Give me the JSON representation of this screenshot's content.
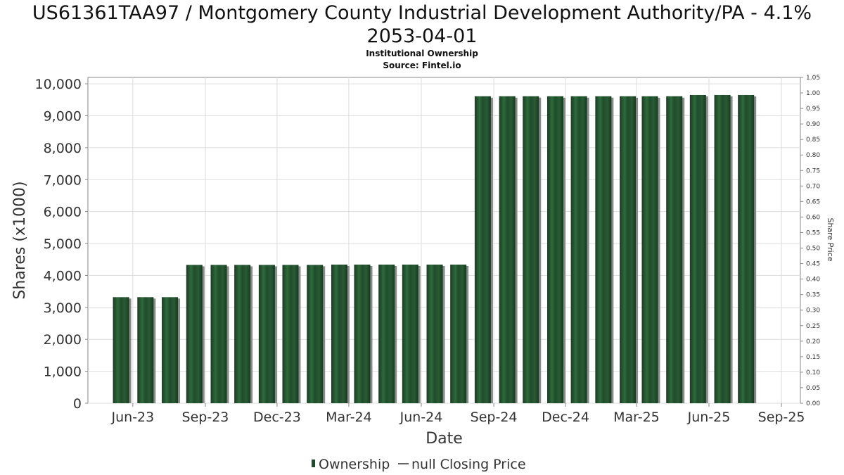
{
  "title_lines": [
    "US61361TAA97 / Montgomery County Industrial Development Authority/PA - 4.1%",
    "2053-04-01"
  ],
  "subtitle": "Institutional Ownership",
  "source": "Source: Fintel.io",
  "colors": {
    "bar": "#1f4d2b",
    "bar_highlight": "#2f6a3c",
    "bar_shadow": "#8a8a8a",
    "grid": "#dddddd",
    "axis": "#888888"
  },
  "chart_data": {
    "type": "bar",
    "xlabel": "Date",
    "ylabel": "Shares (x1000)",
    "y2label": "Share Price",
    "ylim": [
      0,
      10200
    ],
    "y2lim": [
      0,
      1.05
    ],
    "grid": true,
    "legend_position": "bottom",
    "yticks": [
      {
        "value": 0,
        "label": "0"
      },
      {
        "value": 1000,
        "label": "1,000"
      },
      {
        "value": 2000,
        "label": "2,000"
      },
      {
        "value": 3000,
        "label": "3,000"
      },
      {
        "value": 4000,
        "label": "4,000"
      },
      {
        "value": 5000,
        "label": "5,000"
      },
      {
        "value": 6000,
        "label": "6,000"
      },
      {
        "value": 7000,
        "label": "7,000"
      },
      {
        "value": 8000,
        "label": "8,000"
      },
      {
        "value": 9000,
        "label": "9,000"
      },
      {
        "value": 10000,
        "label": "10,000"
      }
    ],
    "y2ticks": [
      {
        "value": 0.0,
        "label": "0.00"
      },
      {
        "value": 0.05,
        "label": "0.05"
      },
      {
        "value": 0.1,
        "label": "0.10"
      },
      {
        "value": 0.15,
        "label": "0.15"
      },
      {
        "value": 0.2,
        "label": "0.20"
      },
      {
        "value": 0.25,
        "label": "0.25"
      },
      {
        "value": 0.3,
        "label": "0.30"
      },
      {
        "value": 0.35,
        "label": "0.35"
      },
      {
        "value": 0.4,
        "label": "0.40"
      },
      {
        "value": 0.45,
        "label": "0.45"
      },
      {
        "value": 0.5,
        "label": "0.50"
      },
      {
        "value": 0.55,
        "label": "0.55"
      },
      {
        "value": 0.6,
        "label": "0.60"
      },
      {
        "value": 0.65,
        "label": "0.65"
      },
      {
        "value": 0.7,
        "label": "0.70"
      },
      {
        "value": 0.75,
        "label": "0.75"
      },
      {
        "value": 0.8,
        "label": "0.80"
      },
      {
        "value": 0.85,
        "label": "0.85"
      },
      {
        "value": 0.9,
        "label": "0.90"
      },
      {
        "value": 0.95,
        "label": "0.95"
      },
      {
        "value": 1.0,
        "label": "1.00"
      },
      {
        "value": 1.05,
        "label": "1.05"
      }
    ],
    "xticks": [
      {
        "date": "2023-06-01",
        "label": "Jun-23"
      },
      {
        "date": "2023-09-01",
        "label": "Sep-23"
      },
      {
        "date": "2023-12-01",
        "label": "Dec-23"
      },
      {
        "date": "2024-03-01",
        "label": "Mar-24"
      },
      {
        "date": "2024-06-01",
        "label": "Jun-24"
      },
      {
        "date": "2024-09-01",
        "label": "Sep-24"
      },
      {
        "date": "2024-12-01",
        "label": "Dec-24"
      },
      {
        "date": "2025-03-01",
        "label": "Mar-25"
      },
      {
        "date": "2025-06-01",
        "label": "Jun-25"
      },
      {
        "date": "2025-09-01",
        "label": "Sep-25"
      }
    ],
    "x_range": [
      "2023-04-05",
      "2025-09-25"
    ],
    "series": [
      {
        "name": "Ownership",
        "points": [
          {
            "date": "2023-05-17",
            "value": 3320
          },
          {
            "date": "2023-06-17",
            "value": 3320
          },
          {
            "date": "2023-07-18",
            "value": 3320
          },
          {
            "date": "2023-08-18",
            "value": 4330
          },
          {
            "date": "2023-09-18",
            "value": 4330
          },
          {
            "date": "2023-10-18",
            "value": 4330
          },
          {
            "date": "2023-11-18",
            "value": 4330
          },
          {
            "date": "2023-12-18",
            "value": 4330
          },
          {
            "date": "2024-01-18",
            "value": 4330
          },
          {
            "date": "2024-02-18",
            "value": 4340
          },
          {
            "date": "2024-03-18",
            "value": 4340
          },
          {
            "date": "2024-04-18",
            "value": 4340
          },
          {
            "date": "2024-05-18",
            "value": 4340
          },
          {
            "date": "2024-06-18",
            "value": 4340
          },
          {
            "date": "2024-07-18",
            "value": 4340
          },
          {
            "date": "2024-08-18",
            "value": 9610
          },
          {
            "date": "2024-09-18",
            "value": 9610
          },
          {
            "date": "2024-10-18",
            "value": 9610
          },
          {
            "date": "2024-11-18",
            "value": 9610
          },
          {
            "date": "2024-12-18",
            "value": 9610
          },
          {
            "date": "2025-01-18",
            "value": 9610
          },
          {
            "date": "2025-02-18",
            "value": 9610
          },
          {
            "date": "2025-03-18",
            "value": 9610
          },
          {
            "date": "2025-04-18",
            "value": 9610
          },
          {
            "date": "2025-05-18",
            "value": 9650
          },
          {
            "date": "2025-06-18",
            "value": 9650
          },
          {
            "date": "2025-07-18",
            "value": 9650
          }
        ]
      }
    ],
    "legend": [
      {
        "label": "Ownership",
        "symbol": "bar"
      },
      {
        "label": "null Closing Price",
        "symbol": "line"
      }
    ]
  }
}
